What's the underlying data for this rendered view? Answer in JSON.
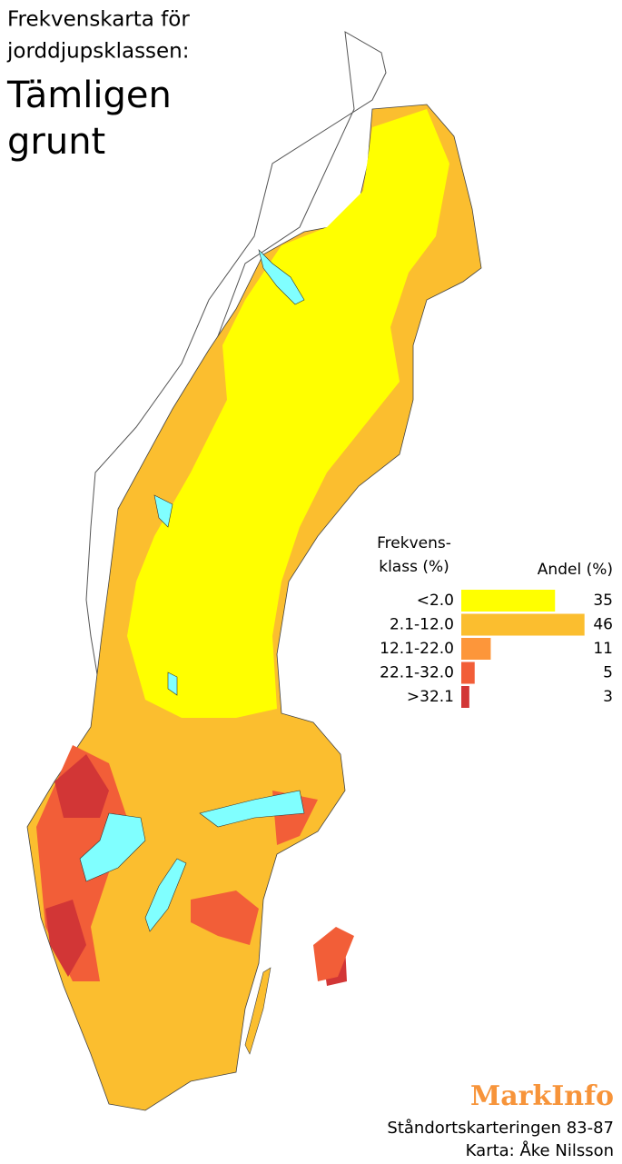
{
  "title_line1": "Frekvenskarta för",
  "title_line2": "jorddjupsklassen:",
  "subtitle_line1": "Tämligen",
  "subtitle_line2": "grunt",
  "legend": {
    "class_header_line1": "Frekvens-",
    "class_header_line2": "klass (%)",
    "share_header": "Andel (%)",
    "items": [
      {
        "class": "<2.0",
        "share": 35,
        "color": "#ffff00"
      },
      {
        "class": "2.1-12.0",
        "share": 46,
        "color": "#fbbe2f"
      },
      {
        "class": "12.1-22.0",
        "share": 11,
        "color": "#fd963a"
      },
      {
        "class": "22.1-32.0",
        "share": 5,
        "color": "#f25e38"
      },
      {
        "class": ">32.1",
        "share": 3,
        "color": "#d23636"
      }
    ]
  },
  "brand": "MarkInfo",
  "source": "Ståndortskarteringen 83-87",
  "credit": "Karta: Åke Nilsson"
}
